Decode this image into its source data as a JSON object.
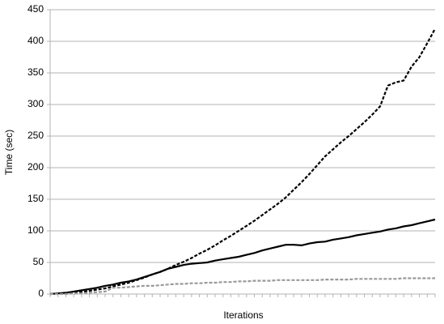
{
  "chart_data": {
    "type": "line",
    "x_label": "Iterations",
    "y_label": "Time (sec)",
    "categories": [
      null,
      null,
      null,
      null,
      null,
      null,
      null,
      null,
      null,
      null,
      null,
      null,
      null,
      null,
      null,
      null,
      null,
      null,
      null,
      null,
      null,
      null,
      null,
      null,
      null,
      null,
      null,
      null,
      null,
      null,
      null,
      null,
      null,
      null,
      null,
      null,
      null,
      null,
      null,
      null,
      null,
      null,
      null,
      null,
      null,
      null,
      null,
      null,
      null,
      null
    ],
    "series": [
      {
        "color": "#000000",
        "style": "dashed",
        "values": [
          0,
          0.5,
          1.5,
          2.5,
          3.5,
          5,
          7,
          9,
          12,
          15,
          18,
          22,
          26,
          31,
          35,
          40,
          46,
          51,
          57,
          64,
          70,
          77,
          85,
          92,
          100,
          108,
          116,
          125,
          134,
          143,
          153,
          165,
          177,
          190,
          204,
          218,
          229,
          240,
          250,
          261,
          272,
          284,
          297,
          330,
          335,
          338,
          360,
          375,
          397,
          420
        ]
      },
      {
        "color": "#000000",
        "style": "solid",
        "values": [
          0,
          1,
          2,
          4,
          6,
          8,
          10,
          13,
          15,
          18,
          20,
          23,
          27,
          31,
          35,
          40,
          43,
          46,
          48,
          49,
          50,
          53,
          55,
          57,
          59,
          62,
          65,
          69,
          72,
          75,
          78,
          78,
          77,
          80,
          82,
          83,
          86,
          88,
          90,
          93,
          95,
          97,
          99,
          102,
          104,
          107,
          109,
          112,
          115,
          118
        ]
      },
      {
        "color": "#999999",
        "style": "dashed",
        "values": [
          0,
          0,
          0,
          1,
          1,
          2,
          3,
          4,
          10,
          10,
          11,
          12,
          13,
          13,
          14,
          15,
          16,
          16,
          17,
          17,
          18,
          18,
          19,
          19,
          20,
          20,
          21,
          21,
          21,
          22,
          22,
          22,
          22,
          22,
          22,
          23,
          23,
          23,
          23,
          24,
          24,
          24,
          24,
          24,
          24,
          25,
          25,
          25,
          25,
          25
        ]
      }
    ],
    "ylim": [
      0,
      450
    ],
    "yticks": [
      0,
      50,
      100,
      150,
      200,
      250,
      300,
      350,
      400,
      450
    ],
    "grid": true
  }
}
